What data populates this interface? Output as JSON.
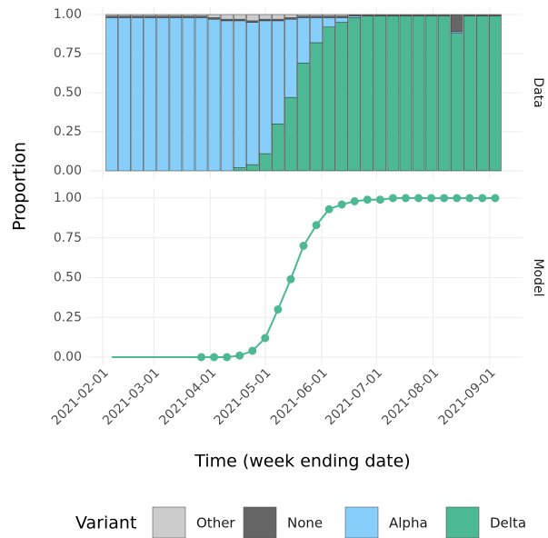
{
  "chart_data": [
    {
      "type": "bar",
      "stacked": true,
      "strip": "Data",
      "x": [
        "2021-02-06",
        "2021-02-13",
        "2021-02-20",
        "2021-02-27",
        "2021-03-06",
        "2021-03-13",
        "2021-03-20",
        "2021-03-27",
        "2021-04-03",
        "2021-04-10",
        "2021-04-17",
        "2021-04-24",
        "2021-05-01",
        "2021-05-08",
        "2021-05-15",
        "2021-05-22",
        "2021-05-29",
        "2021-06-05",
        "2021-06-12",
        "2021-06-19",
        "2021-06-26",
        "2021-07-03",
        "2021-07-10",
        "2021-07-17",
        "2021-07-24",
        "2021-07-31",
        "2021-08-07",
        "2021-08-14",
        "2021-08-21",
        "2021-08-28",
        "2021-09-04"
      ],
      "series": [
        {
          "name": "Delta",
          "color": "#4cb894",
          "values": [
            0,
            0,
            0,
            0,
            0,
            0,
            0,
            0,
            0,
            0,
            0.02,
            0.04,
            0.11,
            0.3,
            0.47,
            0.69,
            0.82,
            0.92,
            0.95,
            0.98,
            0.99,
            0.99,
            0.99,
            0.99,
            0.99,
            0.99,
            0.99,
            0.88,
            0.99,
            0.99,
            0.99
          ]
        },
        {
          "name": "Alpha",
          "color": "#87cefa",
          "values": [
            0.98,
            0.98,
            0.98,
            0.98,
            0.98,
            0.98,
            0.98,
            0.98,
            0.97,
            0.96,
            0.94,
            0.91,
            0.85,
            0.66,
            0.5,
            0.29,
            0.16,
            0.06,
            0.03,
            0.01,
            0,
            0,
            0,
            0,
            0,
            0,
            0,
            0.01,
            0,
            0,
            0
          ]
        },
        {
          "name": "None",
          "color": "#666666",
          "values": [
            0.01,
            0.01,
            0.01,
            0.01,
            0.01,
            0.01,
            0.01,
            0.01,
            0.01,
            0.01,
            0.01,
            0.01,
            0.01,
            0.01,
            0.01,
            0.01,
            0.01,
            0.01,
            0.01,
            0.01,
            0.01,
            0.01,
            0.01,
            0.01,
            0.01,
            0.01,
            0.01,
            0.11,
            0.01,
            0.01,
            0.01
          ]
        },
        {
          "name": "Other",
          "color": "#cccccc",
          "values": [
            0.01,
            0.01,
            0.01,
            0.01,
            0.01,
            0.01,
            0.01,
            0.01,
            0.02,
            0.03,
            0.03,
            0.04,
            0.03,
            0.03,
            0.02,
            0.01,
            0.01,
            0.01,
            0.01,
            0,
            0,
            0,
            0,
            0,
            0,
            0,
            0,
            0,
            0,
            0,
            0
          ]
        }
      ],
      "ylim": [
        0,
        1
      ],
      "yticks": [
        {
          "value": 0,
          "label": "0.00"
        },
        {
          "value": 0.25,
          "label": "0.25"
        },
        {
          "value": 0.5,
          "label": "0.50"
        },
        {
          "value": 0.75,
          "label": "0.75"
        },
        {
          "value": 1,
          "label": "1.00"
        }
      ]
    },
    {
      "type": "line",
      "strip": "Model",
      "color": "#4cb894",
      "x": [
        "2021-02-06",
        "2021-02-13",
        "2021-02-20",
        "2021-02-27",
        "2021-03-06",
        "2021-03-13",
        "2021-03-20",
        "2021-03-27",
        "2021-04-03",
        "2021-04-10",
        "2021-04-17",
        "2021-04-24",
        "2021-05-01",
        "2021-05-08",
        "2021-05-15",
        "2021-05-22",
        "2021-05-29",
        "2021-06-05",
        "2021-06-12",
        "2021-06-19",
        "2021-06-26",
        "2021-07-03",
        "2021-07-10",
        "2021-07-17",
        "2021-07-24",
        "2021-07-31",
        "2021-08-07",
        "2021-08-14",
        "2021-08-21",
        "2021-08-28",
        "2021-09-04"
      ],
      "values": [
        0,
        0,
        0,
        0,
        0,
        0,
        0,
        0,
        0,
        0,
        0.01,
        0.04,
        0.12,
        0.3,
        0.49,
        0.7,
        0.83,
        0.93,
        0.96,
        0.98,
        0.99,
        0.99,
        1,
        1,
        1,
        1,
        1,
        1,
        1,
        1,
        1
      ],
      "points": {
        "x": [
          "2021-03-27",
          "2021-04-03",
          "2021-04-10",
          "2021-04-17",
          "2021-04-24",
          "2021-05-01",
          "2021-05-08",
          "2021-05-15",
          "2021-05-22",
          "2021-05-29",
          "2021-06-05",
          "2021-06-12",
          "2021-06-19",
          "2021-06-26",
          "2021-07-03",
          "2021-07-10",
          "2021-07-17",
          "2021-07-24",
          "2021-07-31",
          "2021-08-07",
          "2021-08-14",
          "2021-08-21",
          "2021-08-28",
          "2021-09-04"
        ],
        "values": [
          0,
          0,
          0,
          0.01,
          0.04,
          0.12,
          0.3,
          0.49,
          0.7,
          0.83,
          0.93,
          0.96,
          0.98,
          0.99,
          0.99,
          1,
          1,
          1,
          1,
          1,
          1,
          1,
          1,
          1
        ]
      },
      "ylim": [
        0,
        1
      ],
      "yticks": [
        {
          "value": 0,
          "label": "0.00"
        },
        {
          "value": 0.25,
          "label": "0.25"
        },
        {
          "value": 0.5,
          "label": "0.50"
        },
        {
          "value": 0.75,
          "label": "0.75"
        },
        {
          "value": 1,
          "label": "1.00"
        }
      ]
    }
  ],
  "axes": {
    "xlim": [
      "2021-01-24",
      "2021-09-19"
    ],
    "xticks": [
      "2021-02-01",
      "2021-03-01",
      "2021-04-01",
      "2021-05-01",
      "2021-06-01",
      "2021-07-01",
      "2021-08-01",
      "2021-09-01"
    ],
    "xlabel": "Time (week ending date)",
    "ylabel": "Proportion"
  },
  "legend": {
    "title": "Variant"
  }
}
